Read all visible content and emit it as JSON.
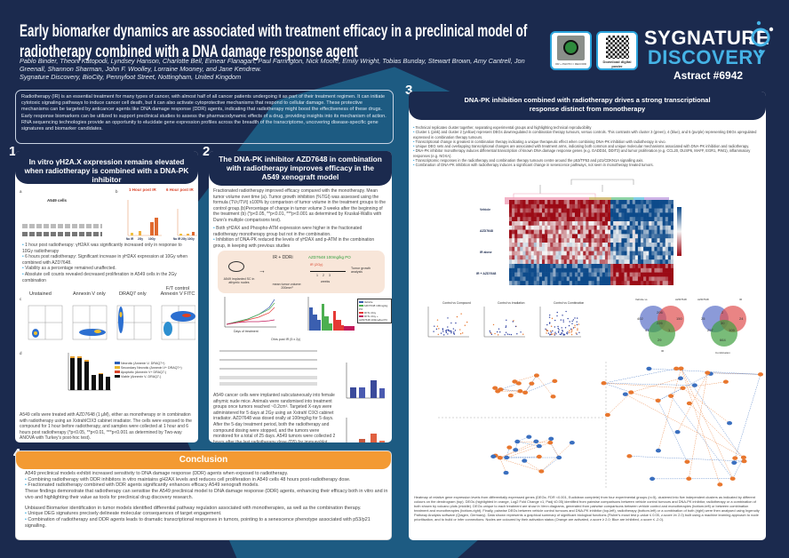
{
  "header": {
    "title": "Early biomarker dynamics are associated with treatment efficacy in a preclinical model of radiotherapy combined with a DNA damage response agent",
    "authors": "Pablo Binder, Theoni Katopodi, Lyndsey Hanson, Charlotte Bell, Eimear Flanagan, Paul Farrington, Nick Moore, Emily Wright, Tobias Bunday, Stewart Brown, Amy Cantrell, Jon Greenall, Shannon Sharman, John F. Woolley, Lorraine Mooney, and Jane Kendrew.",
    "affiliation": "Sygnature Discovery, BioCity, Pennyfoot Street, Nottingham, United Kingdom",
    "badge1_label": "OR + PHOTO = RECORD",
    "badge2_label": "Download digital poster",
    "logo_line1": "SYGNATURE",
    "logo_line2": "DISCOVERY",
    "abstract_number": "Astract #6942"
  },
  "abstract": "Radiotherapy (IR) is an essential treatment for many types of cancer, with almost half of all cancer patients undergoing it as part of their treatment regimen. It can initiate cytotoxic signaling pathways to induce cancer cell death, but it can also activate cytoprotective mechanisms that respond to cellular damage. These protective mechanisms can be targeted by anticancer agents like DNA damage response (DDR) agents, indicating that radiotherapy might boost the effectiveness of these drugs. Early response biomarkers can be utilized to support preclinical studies to assess the pharmacodynamic effects of a drug, providing insights into its mechanism of action. RNA sequencing technologies provide an opportunity to elucidate gene expression profiles across the breadth of the transcriptome, uncovering disease-specific gene signatures and biomarker candidates.",
  "panel1": {
    "number": "1",
    "title": "In vitro γH2A.X expression remains elevated when radiotherapy is combined with a DNA-PK inhibitor",
    "fig_a_label": "a",
    "fig_b_label": "b",
    "fig_c_label": "c",
    "fig_d_label": "d",
    "blot_title": "A549 cells",
    "bar_titles": [
      "1 Hour post IR",
      "6 Hour post IR"
    ],
    "bar_groups": [
      "No IR",
      "2Gy",
      "10Gy"
    ],
    "bullets": [
      "1 hour post radiotherapy: γH2AX was significantly increased only in response to 10Gy radiotherapy",
      "6 hours post radiotherapy: Significant increase in γH2AX expression at 10Gy when combined with AZD7648.",
      "Viability as a percentage remained unaffected.",
      "Absolute cell counts revealed decreased proliferation in A549 cells in the 2Gy combination"
    ],
    "flow_titles": [
      "Unstained",
      "Annexin V only",
      "DRAQ7 only",
      "F/T control Annexin V FITC"
    ],
    "legend": [
      {
        "label": "Necrotic (Annexin V- DRAQ7+)",
        "color": "#2c5fb8"
      },
      {
        "label": "Secondary Necrotic (Annexin V+ DRAQ7+)",
        "color": "#e8b830"
      },
      {
        "label": "Apoptotic (Annexin V+ DRAQ7-)",
        "color": "#d9452b"
      },
      {
        "label": "Viable (Annexin V- DRAQ7-)",
        "color": "#111111"
      }
    ],
    "caption": "A549 cells were treated with AZD7648 (1 µM), either as monotherapy or in combination with radiotherapy using an XstrahlCIX3 cabinet irradiator. The cells were exposed to the compound for 1 hour before radiotherapy, and samples were collected at 1 hour and 6 hours post radiotherapy (*p<0.05, **p<0.01, ***p<0.001 as determined by Two-way ANOVA with Turkey's post-hoc test)."
  },
  "panel2": {
    "number": "2",
    "title": "The DNA-PK inhibitor AZD7648 in combination with radiotherapy improves efficacy in the A549 xenograft model",
    "intro": "Fractionated radiotherapy improved efficacy compared with the monotherapy. Mean tumor volume over time (a). Tumor growth inhibition (%TGI) was assessed using the formula (TVc/TVt) x100% by comparison of tumor volume in the treatment groups to the control group.(b)Percentage of change in tumor volume 3 weeks after the beginning of the treatment (b) (*p<0.05, **p<0.01, ***p<0.001 as determined by Kruskal-Wallis with Dunn's multiple comparisons test).",
    "bullets": [
      "Both γH2AX and Phospho-ATM expression were higher in the fractionated radiotherapy monotherapy group but not in the combination.",
      "Inhibition of DNA-PK reduced the levels of γH2AX and p-ATM in the combination group, in keeping with previous studies"
    ],
    "schema": {
      "implant": "A549 implanted SC in athymic nudes",
      "treat": "IR + DDRi",
      "volume": "mean tumor volume: 200mm³",
      "drug": "AZD7648 100mg/kg PO",
      "ir": "IR (2Gy)",
      "weeks": "weeks",
      "ticks": [
        "1",
        "2",
        "3"
      ],
      "analysis": "Tumor growth analysis"
    },
    "legend": [
      {
        "label": "Vehicle",
        "color": "#3b5fb0"
      },
      {
        "label": "AZD7648 100mg/kg PO",
        "color": "#4caf50"
      },
      {
        "label": "IR 5x 2Gy",
        "color": "#e53935"
      },
      {
        "label": "IR 5x 2Gy + AZD7648 100mg/kg PO",
        "color": "#c2185b"
      }
    ],
    "growth_xlabel": "Days of treatment",
    "blot_title": "Ohrs post IR (5 x 2y)",
    "caption": "A549 cancer cells were implanted subcutaneously into female athymic nude mice. Animals were randomised into treatment groups once tumors reached ~0.2cm³. Targeted X-rays were administered for 5 days at 2Gy using an Xstrahl CIX3 cabinet irradiator. AZD7648 was dosed orally at 100mg/kg for 5 days. After the 5-day treatment period, both the radiotherapy and compound dosing were stopped, and the tumors were monitored for a total of 25 days. A549 tumors were collected 2 hours after the last radiotherapy dose (D5) for immunoblot phosphoprotein analysis (*p<0.05, as determined by 2way ANOVA with Turkey's"
  },
  "panel3": {
    "number": "3",
    "title": "DNA-PK inhibition combined with radiotherapy drives a strong transcriptional response distinct from monotherapy",
    "bullets": [
      "Technical replicates cluster together, separating experimental groups and highlighting technical reproducibility",
      "Cluster 1 (pink) and cluster 2 (yellow) represent DEGs downregulated in combination therapy tumours, versus controls. This contrasts with cluster 3 (green), 4 (blue), and 5 (purple) representing DEGs upregulated expressed in combination therapy tumours.",
      "Transcriptional change is greatest in combination therapy indicating a unique therapeutic effect when combining DNA-PK inhibition with radiotherapy in vivo.",
      "Unique DEG sets and overlapping transcriptional changes are associated with treatment arms, indicating both common and unique molecular mechanisms associated with DNA-PK inhibition and radiotherapy.",
      "DNA-PK inhibitor monotherapy induces differential transcription of known DNA damage response genes (e.g. GADD34, DDIT3) and tumor proliferation (e.g. CCL20, DUSP6, MAFF, EGR1, PIM1), inflammatory responses (e.g. NOXA).",
      "Transcriptomic responses in the radiotherapy and combination therapy tumours centre around the p53/TP53 and p21/CDKN1A signalling axis.",
      "Combination of DNA-PK inhibition with radiotherapy induces a significant change in senescence pathways, not seen in monotherapy treated tumors."
    ],
    "heatmap_rows": [
      "Vehicle",
      "AZD7648",
      "IR alone",
      "IR + AZD7648"
    ],
    "volcano_titles": [
      "Control vs Compound",
      "Control vs Irradiation",
      "Control vs Combination"
    ],
    "venn1": {
      "labels": [
        "Vehicle vs",
        "AZD7648",
        "IR"
      ],
      "values": [
        "402",
        "206",
        "150",
        "226",
        "47",
        "1",
        "29"
      ]
    },
    "venn2": {
      "labels": [
        "AZD7648",
        "IR",
        "Combination"
      ],
      "values": [
        "25",
        "2",
        "24",
        "30",
        "297",
        "109",
        "664"
      ]
    },
    "node_colors": {
      "activated": "#e8772e",
      "inhibited": "#3a6fbf"
    },
    "caption": "Heatmap of relative gene expression levels from differentially expressed genes (DEGs; FDR <0.001, Euclidean complete) from four experimental groups (n=5), clustered into five independent clusters as indicated by different colours on the dendrogram (top). DEGs (highlighted in orange, Log2 Fold Change ±1, Padj ≤0.05) identified from pairwise comparisons between vehicle control tumours and DNA-PK inhibitor, radiotherapy or a combination of both shown by volcano plots (middle). DEGs unique to each treatment are show in Venn diagrams, generated from pairwise comparisons between vehicle control and monotherapies (bottom-left) or between combination treatment and monotherapies (bottom-right). Finally, pairwise DEGs between vehicle control tumours and DNA-PK inhibitor (top-left), radiotherapy (bottom-left) or a combination of both (right) were then analysed using Ingenuity Pathway Analysis software (Qiagen, Germany). Data shown represents a graphical summary of significant biological functions (Fisher's exact test p-value ≤ 0.05, z-score ≥± 2.0) built using a machine learning approach to node prioritisation, and to build or infer connections. Nodes are coloured by their activation status (Orange are activated, z-score ≥ 2.0; Blue are inhibited, z-score ≤ -2.0)."
  },
  "panel4": {
    "number": "4",
    "title": "Conclusion",
    "p1": "A549 preclinical models exhibit increased sensitivity to DNA damage response (DDR) agents when exposed to radiotherapy.",
    "b1": [
      "Combining radiotherapy with DDR inhibitors in vitro maintains gH2AX levels and reduces cell proliferation in A549 cells 48 hours post-radiotherapy dose.",
      "Fractionated radiotherapy combined with DDR agents significantly enhances efficacy A549 xenograft models."
    ],
    "p2": "These findings demonstrate that radiotherapy can sensitise the A549 preclinical model to DNA damage response (DDR) agents, enhancing their efficacy both in vitro and in vivo and highlighting their value as tools for preclinical drug discovery research.",
    "p3": "Unbiased Biomarker identification in tumor models identified differential pathway regulation associated with monotherapies, as well as the combination therapy.",
    "b2": [
      "Unique DEG signatures precisely delineate molecular consequences of target engagement.",
      "Combination of radiotherapy and DDR agents leads to dramatic transcriptional responses in tumors, pointing to a senescence phenotype associated with p53/p21 signalling."
    ]
  },
  "colors": {
    "navy": "#1b2a4e",
    "teal": "#1d5b82",
    "accent": "#2aa4dc",
    "orange": "#f39a33"
  }
}
